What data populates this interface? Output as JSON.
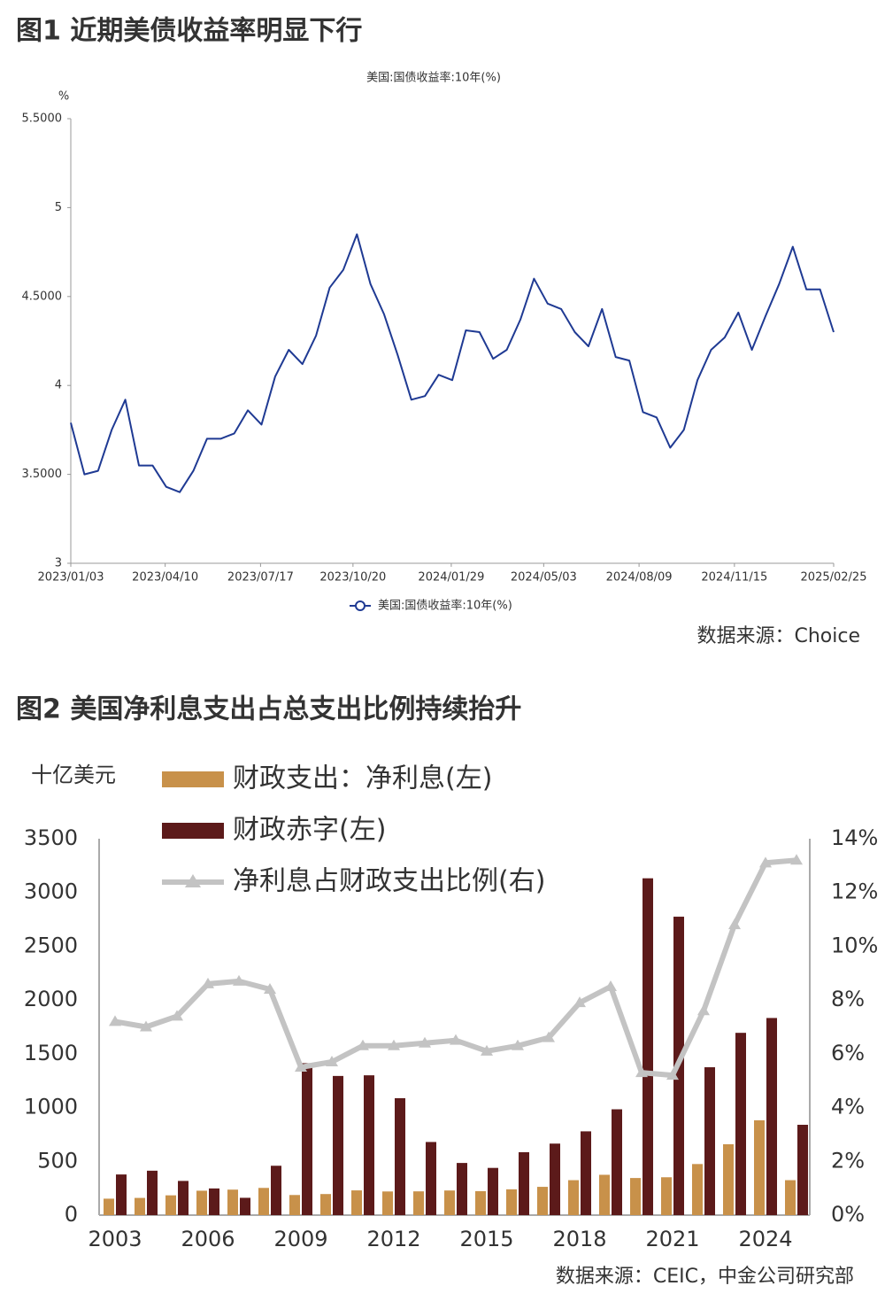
{
  "chart_data": [
    {
      "type": "line",
      "heading": "图1  近期美债收益率明显下行",
      "title": "美国:国债收益率:10年(%)",
      "ylabel": "%",
      "source": "数据来源：Choice",
      "x": [
        "2023/01/03",
        "2023/01/17",
        "2023/01/31",
        "2023/02/14",
        "2023/02/28",
        "2023/03/14",
        "2023/03/28",
        "2023/04/11",
        "2023/04/25",
        "2023/05/09",
        "2023/05/23",
        "2023/06/06",
        "2023/06/20",
        "2023/07/04",
        "2023/07/18",
        "2023/08/01",
        "2023/08/15",
        "2023/08/29",
        "2023/09/12",
        "2023/09/26",
        "2023/10/10",
        "2023/10/24",
        "2023/11/07",
        "2023/11/21",
        "2023/12/05",
        "2023/12/19",
        "2024/01/02",
        "2024/01/16",
        "2024/01/30",
        "2024/02/13",
        "2024/02/27",
        "2024/03/12",
        "2024/03/26",
        "2024/04/09",
        "2024/04/23",
        "2024/05/07",
        "2024/05/21",
        "2024/06/04",
        "2024/06/18",
        "2024/07/02",
        "2024/07/16",
        "2024/07/30",
        "2024/08/13",
        "2024/08/27",
        "2024/09/10",
        "2024/09/24",
        "2024/10/08",
        "2024/10/22",
        "2024/11/05",
        "2024/11/19",
        "2024/12/03",
        "2024/12/17",
        "2024/12/31",
        "2025/01/14",
        "2025/01/28",
        "2025/02/11",
        "2025/02/25"
      ],
      "series": [
        {
          "name": "美国:国债收益率:10年(%)",
          "color": "#1f3a93",
          "values": [
            3.79,
            3.5,
            3.52,
            3.75,
            3.92,
            3.55,
            3.55,
            3.43,
            3.4,
            3.52,
            3.7,
            3.7,
            3.73,
            3.86,
            3.78,
            4.05,
            4.2,
            4.12,
            4.28,
            4.55,
            4.65,
            4.85,
            4.57,
            4.4,
            4.17,
            3.92,
            3.94,
            4.06,
            4.03,
            4.31,
            4.3,
            4.15,
            4.2,
            4.37,
            4.6,
            4.46,
            4.43,
            4.3,
            4.22,
            4.43,
            4.16,
            4.14,
            3.85,
            3.82,
            3.65,
            3.75,
            4.03,
            4.2,
            4.27,
            4.41,
            4.2,
            4.39,
            4.57,
            4.78,
            4.54,
            4.54,
            4.3
          ]
        }
      ],
      "xlim": [
        "2023/01/03",
        "2025/02/25"
      ],
      "xticks": [
        "2023/01/03",
        "2023/04/10",
        "2023/07/17",
        "2023/10/20",
        "2024/01/29",
        "2024/05/03",
        "2024/08/09",
        "2024/11/15",
        "2025/02/25"
      ],
      "ylim": [
        3,
        5.5
      ],
      "yticks": [
        3,
        {
          "value": 3.5,
          "label": "3.5000"
        },
        4,
        {
          "value": 4.5,
          "label": "4.5000"
        },
        5,
        {
          "value": 5.5,
          "label": "5.5000"
        }
      ],
      "legend": "bottom"
    },
    {
      "type": "bar",
      "heading": "图2  美国净利息支出占总支出比例持续抬升",
      "ylabel": "十亿美元",
      "source": "数据来源：CEIC，中金公司研究部",
      "categories": [
        "2003",
        null,
        null,
        "2006",
        null,
        null,
        "2009",
        null,
        null,
        "2012",
        null,
        null,
        "2015",
        null,
        null,
        "2018",
        null,
        null,
        "2021",
        null,
        null,
        "2024",
        null
      ],
      "series": [
        {
          "name": "财政支出：净利息(左)",
          "type": "bar",
          "color": "#c8914a",
          "values": [
            153,
            160,
            184,
            227,
            237,
            253,
            187,
            196,
            230,
            220,
            221,
            229,
            223,
            240,
            263,
            325,
            375,
            345,
            352,
            475,
            659,
            882,
            325
          ]
        },
        {
          "name": "财政赤字(左)",
          "type": "bar",
          "color": "#5c1a1a",
          "values": [
            378,
            413,
            318,
            248,
            161,
            459,
            1413,
            1294,
            1300,
            1087,
            680,
            485,
            439,
            585,
            665,
            779,
            984,
            3132,
            2775,
            1375,
            1695,
            1833,
            840
          ]
        },
        {
          "name": "净利息占财政支出比例(右)",
          "type": "line",
          "axis": "y2",
          "color": "#c3c3c3",
          "values": [
            7.2,
            7.0,
            7.4,
            8.6,
            8.7,
            8.4,
            5.5,
            5.7,
            6.3,
            6.3,
            6.4,
            6.5,
            6.1,
            6.3,
            6.6,
            7.9,
            8.5,
            5.3,
            5.2,
            7.6,
            10.8,
            13.1,
            13.2
          ]
        }
      ],
      "ylim": [
        0,
        3500
      ],
      "yticks": [
        0,
        500,
        1000,
        1500,
        2000,
        2500,
        3000,
        3500
      ],
      "y2lim": [
        0,
        14
      ],
      "y2ticks": [
        {
          "value": 0,
          "label": "0%"
        },
        {
          "value": 2,
          "label": "2%"
        },
        {
          "value": 4,
          "label": "4%"
        },
        {
          "value": 6,
          "label": "6%"
        },
        {
          "value": 8,
          "label": "8%"
        },
        {
          "value": 10,
          "label": "10%"
        },
        {
          "value": 12,
          "label": "12%"
        },
        {
          "value": 14,
          "label": "14%"
        }
      ],
      "legend": "top-left"
    }
  ]
}
